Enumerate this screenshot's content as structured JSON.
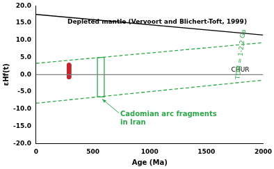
{
  "chart_data": {
    "type": "scatter",
    "x_label": "Age (Ma)",
    "y_label": "εHf(t)",
    "xlim": [
      0,
      2000
    ],
    "xticks": [
      0,
      500,
      1000,
      1500,
      2000
    ],
    "ylim": [
      -20,
      20
    ],
    "yticks": [
      {
        "value": -20,
        "label": "-20.0"
      },
      {
        "value": -15,
        "label": "-15.0"
      },
      {
        "value": -10,
        "label": "-10.0"
      },
      {
        "value": -5,
        "label": "-5.0"
      },
      {
        "value": 0,
        "label": "0.0"
      },
      {
        "value": 5,
        "label": "5.0"
      },
      {
        "value": 10,
        "label": "10.0"
      },
      {
        "value": 15,
        "label": "15.0"
      },
      {
        "value": 20,
        "label": "20.0"
      }
    ],
    "grid": false,
    "series": [
      {
        "name": "Depleted mantle (Vervoort and Blichert-Toft, 1999)",
        "type": "line",
        "color": "#000000",
        "line_style": "solid",
        "x": [
          0,
          2000
        ],
        "values": [
          17.5,
          11.5
        ]
      },
      {
        "name": "CHUR",
        "type": "line",
        "color": "#7f7f7f",
        "line_style": "solid",
        "x": [
          0,
          2000
        ],
        "values": [
          0,
          0
        ]
      },
      {
        "name": "TDM = 1-2.2 Ga",
        "type": "line",
        "color": "#2ea84a",
        "line_style": "dashed",
        "x": [
          0,
          2000
        ],
        "values": [
          3.3,
          9.3
        ]
      },
      {
        "type": "line",
        "color": "#2ea84a",
        "line_style": "dashed",
        "x": [
          0,
          2000
        ],
        "values": [
          -8.3,
          -1.6
        ]
      },
      {
        "name": "Cadomian arc fragments in Iran",
        "type": "line",
        "color": "#2ea84a",
        "line_style": "solid",
        "x": [
          540,
          600,
          600,
          540,
          540
        ],
        "values": [
          5,
          5,
          -6.5,
          -6.5,
          5
        ]
      },
      {
        "type": "scatter",
        "color": "#c0272d",
        "marker": "circle",
        "x": [
          290,
          290,
          290,
          290,
          290,
          290,
          290,
          290,
          290,
          290
        ],
        "values": [
          -0.7,
          -0.3,
          0.2,
          0.6,
          1.0,
          1.4,
          1.8,
          2.2,
          2.6,
          2.8
        ]
      }
    ]
  }
}
